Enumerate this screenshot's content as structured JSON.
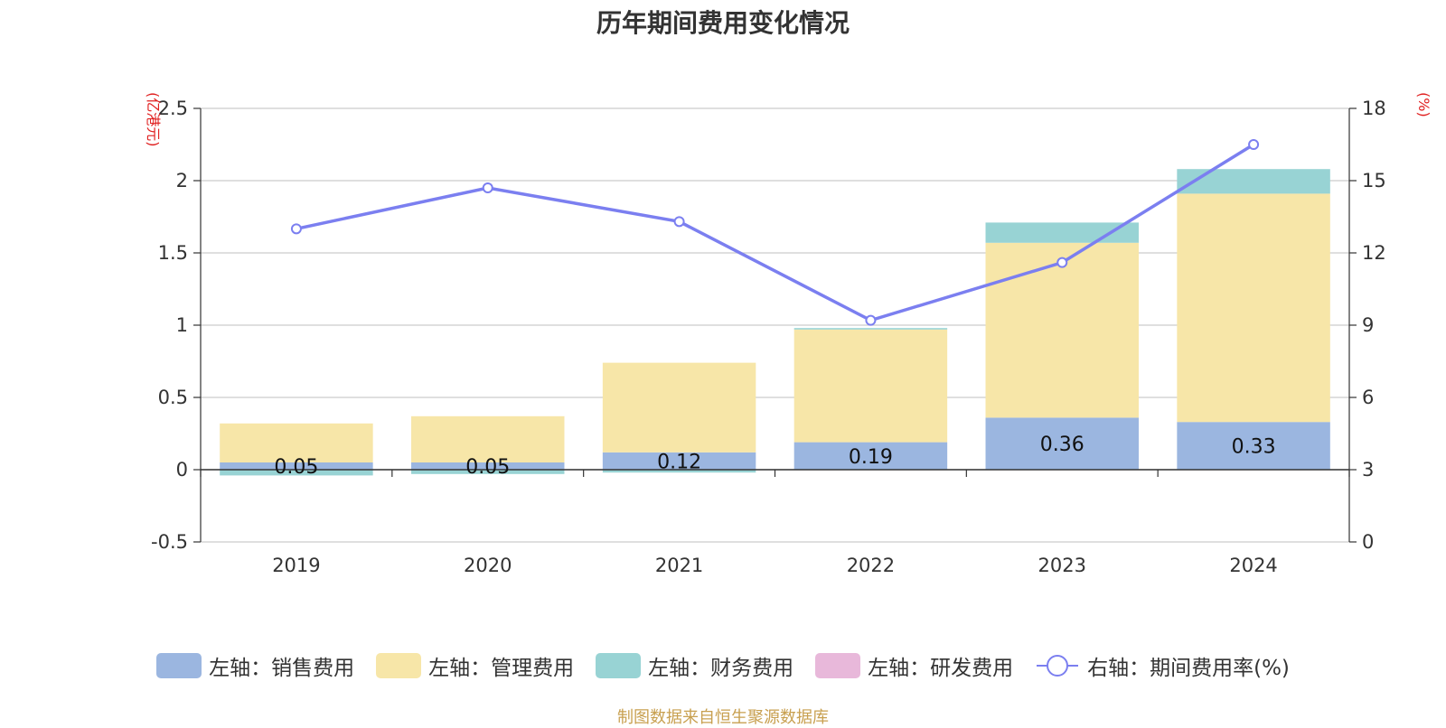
{
  "chart_data": {
    "type": "bar",
    "stacked": true,
    "title": "历年期间费用变化情况",
    "categories": [
      "2019",
      "2020",
      "2021",
      "2022",
      "2023",
      "2024"
    ],
    "left_axis": {
      "unit_label": "(亿港元)",
      "ylim": [
        -0.5,
        2.5
      ],
      "ticks": [
        "-0.5",
        "0",
        "0.5",
        "1",
        "1.5",
        "2",
        "2.5"
      ],
      "tick_values": [
        -0.5,
        0,
        0.5,
        1,
        1.5,
        2,
        2.5
      ]
    },
    "right_axis": {
      "unit_label": "(%)",
      "ylim": [
        0,
        18
      ],
      "ticks": [
        "0",
        "3",
        "6",
        "9",
        "12",
        "15",
        "18"
      ],
      "tick_values": [
        0,
        3,
        6,
        9,
        12,
        15,
        18
      ]
    },
    "series": [
      {
        "name": "左轴：销售费用",
        "type": "bar",
        "axis": "left",
        "color": "#9bb6e0",
        "values": [
          0.05,
          0.05,
          0.12,
          0.19,
          0.36,
          0.33
        ],
        "labels": [
          "0.05",
          "0.05",
          "0.12",
          "0.19",
          "0.36",
          "0.33"
        ]
      },
      {
        "name": "左轴：管理费用",
        "type": "bar",
        "axis": "left",
        "color": "#f7e6a8",
        "values": [
          0.27,
          0.32,
          0.62,
          0.78,
          1.21,
          1.58
        ]
      },
      {
        "name": "左轴：财务费用",
        "type": "bar",
        "axis": "left",
        "color": "#98d3d4",
        "values": [
          -0.04,
          -0.03,
          -0.02,
          0.01,
          0.14,
          0.17
        ]
      },
      {
        "name": "左轴：研发费用",
        "type": "bar",
        "axis": "left",
        "color": "#e8b8da",
        "values": [
          0,
          0,
          0,
          0,
          0,
          0
        ]
      },
      {
        "name": "右轴：期间费用率(%)",
        "type": "line",
        "axis": "right",
        "color": "#7b7ff0",
        "values": [
          13.0,
          14.7,
          13.3,
          9.2,
          11.6,
          16.5
        ]
      }
    ],
    "grid": true,
    "legend_position": "bottom"
  },
  "source_note": "制图数据来自恒生聚源数据库"
}
